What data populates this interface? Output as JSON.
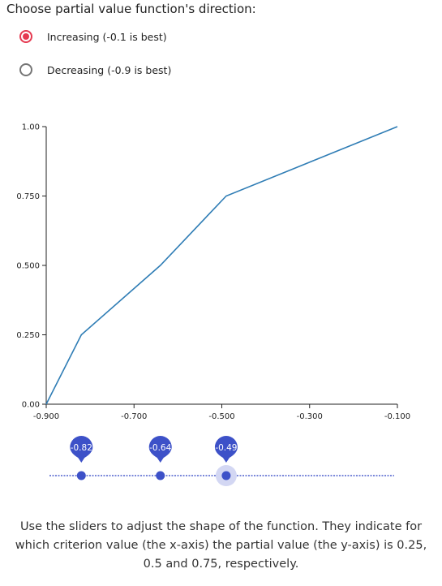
{
  "prompt": "Choose partial value function's direction:",
  "direction": {
    "options": [
      {
        "label": "Increasing (-0.1 is best)",
        "checked": true
      },
      {
        "label": "Decreasing (-0.9 is best)",
        "checked": false
      }
    ]
  },
  "colors": {
    "line": "#2f7db5",
    "radio_checked": "#e53950",
    "slider": "#3d51c8",
    "slider_active_halo": "#d3d7f3"
  },
  "chart_data": {
    "type": "line",
    "x": [
      -0.9,
      -0.82,
      -0.64,
      -0.49,
      -0.1
    ],
    "y": [
      0.0,
      0.25,
      0.5,
      0.75,
      1.0
    ],
    "xlim": [
      -0.9,
      -0.1
    ],
    "ylim": [
      0.0,
      1.0
    ],
    "xticks": [
      "-0.900",
      "-0.700",
      "-0.500",
      "-0.300",
      "-0.100"
    ],
    "xtick_values": [
      -0.9,
      -0.7,
      -0.5,
      -0.3,
      -0.1
    ],
    "yticks": [
      "0.00",
      "0.250",
      "0.500",
      "0.750",
      "1.00"
    ],
    "ytick_values": [
      0.0,
      0.25,
      0.5,
      0.75,
      1.0
    ],
    "grid": false
  },
  "sliders": [
    {
      "label": "-0.82",
      "value": -0.82,
      "active": false
    },
    {
      "label": "-0.64",
      "value": -0.64,
      "active": false
    },
    {
      "label": "-0.49",
      "value": -0.49,
      "active": true
    }
  ],
  "caption": "Use the sliders to adjust the shape of the function. They indicate for which criterion value (the x-axis) the partial value (the y-axis) is 0.25, 0.5 and 0.75, respectively."
}
